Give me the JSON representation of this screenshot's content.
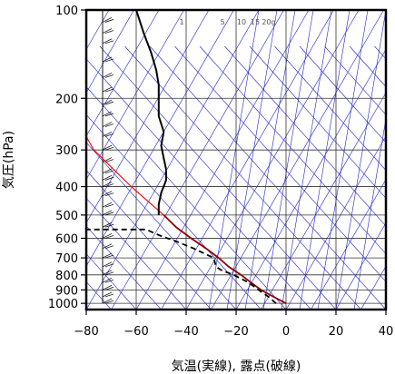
{
  "chart_data": {
    "type": "line",
    "subtype": "skew-T log-P thermodynamic diagram",
    "xlabel": "気温(実線), 露点(破線)",
    "ylabel": "気圧(hPa)",
    "x_ticks": [
      -80,
      -60,
      -40,
      -20,
      0,
      20,
      40
    ],
    "y_ticks": [
      100,
      200,
      300,
      400,
      500,
      600,
      700,
      800,
      900,
      1000
    ],
    "xlim": [
      -80,
      40
    ],
    "ylim": [
      1050,
      100
    ],
    "y_scale": "log",
    "mixing_ratio_labels": [
      "1",
      "5",
      "10",
      "15",
      "20g"
    ],
    "series": [
      {
        "role": "temperature",
        "style": "solid",
        "color": "#8b0000",
        "points": [
          {
            "p": 1000,
            "t": 0
          },
          {
            "p": 950,
            "t": -5
          },
          {
            "p": 900,
            "t": -10
          },
          {
            "p": 850,
            "t": -14
          },
          {
            "p": 800,
            "t": -18
          },
          {
            "p": 750,
            "t": -23
          },
          {
            "p": 700,
            "t": -27
          },
          {
            "p": 650,
            "t": -32
          },
          {
            "p": 600,
            "t": -38
          },
          {
            "p": 550,
            "t": -44
          },
          {
            "p": 500,
            "t": -49
          }
        ]
      },
      {
        "role": "dewpoint",
        "style": "dashed",
        "color": "#000000",
        "points": [
          {
            "p": 1000,
            "t": -4
          },
          {
            "p": 950,
            "t": -7
          },
          {
            "p": 900,
            "t": -11
          },
          {
            "p": 850,
            "t": -15
          },
          {
            "p": 800,
            "t": -21
          },
          {
            "p": 770,
            "t": -26
          },
          {
            "p": 750,
            "t": -28
          },
          {
            "p": 700,
            "t": -29
          },
          {
            "p": 650,
            "t": -37
          },
          {
            "p": 610,
            "t": -45
          },
          {
            "p": 590,
            "t": -50
          },
          {
            "p": 570,
            "t": -54
          },
          {
            "p": 560,
            "t": -56
          },
          {
            "p": 560,
            "t": -70
          },
          {
            "p": 560,
            "t": -80
          }
        ]
      },
      {
        "role": "upper temperature",
        "style": "solid",
        "color": "#000000",
        "points": [
          {
            "p": 500,
            "t": -51
          },
          {
            "p": 460,
            "t": -51
          },
          {
            "p": 420,
            "t": -50
          },
          {
            "p": 380,
            "t": -48
          },
          {
            "p": 350,
            "t": -48
          },
          {
            "p": 320,
            "t": -49
          },
          {
            "p": 290,
            "t": -50
          },
          {
            "p": 260,
            "t": -49
          },
          {
            "p": 230,
            "t": -51
          },
          {
            "p": 200,
            "t": -51
          },
          {
            "p": 180,
            "t": -51
          },
          {
            "p": 160,
            "t": -52
          },
          {
            "p": 140,
            "t": -54
          },
          {
            "p": 120,
            "t": -57
          },
          {
            "p": 100,
            "t": -60
          }
        ]
      }
    ],
    "reference_line": {
      "color": "#ff0000",
      "points": [
        {
          "p": 500,
          "t": -49
        },
        {
          "p": 400,
          "t": -62
        },
        {
          "p": 300,
          "t": -77
        },
        {
          "p": 270,
          "t": -80
        }
      ]
    },
    "wind_barb_levels": [
      100,
      110,
      120,
      130,
      150,
      170,
      190,
      210,
      230,
      250,
      270,
      300,
      330,
      360,
      380,
      400,
      430,
      470,
      500,
      550,
      600,
      650,
      700,
      750,
      800,
      850,
      900,
      950,
      1000
    ],
    "colors": {
      "isotherm": "#2222cc",
      "adiabat": "#2222cc",
      "grid": "#333333",
      "temperature_low": "#000000",
      "temperature_red": "#cc0000"
    }
  }
}
